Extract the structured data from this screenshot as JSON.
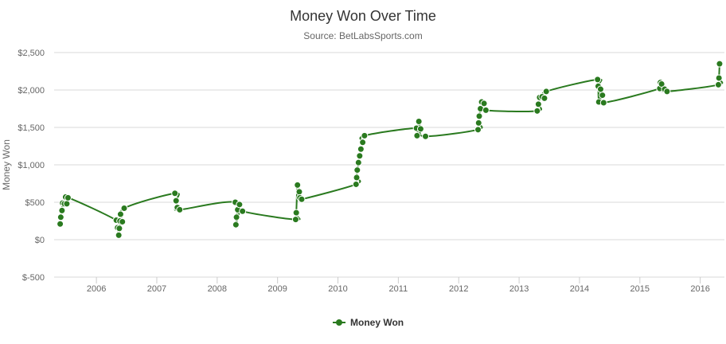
{
  "colors": {
    "series": "#2a7a1f",
    "grid": "#d8d8d8",
    "axis_text": "#666666"
  },
  "chart_data": {
    "type": "line",
    "title": "Money Won Over Time",
    "subtitle": "Source: BetLabsSports.com",
    "xlabel": "",
    "ylabel": "Money Won",
    "ylim": [
      -500,
      2500
    ],
    "yticks": [
      -500,
      0,
      500,
      1000,
      1500,
      2000,
      2500
    ],
    "ytick_labels": [
      "$-500",
      "$0",
      "$500",
      "$1,000",
      "$1,500",
      "$2,000",
      "$2,500"
    ],
    "xlim": [
      2005.3,
      2016.4
    ],
    "xticks": [
      2006,
      2007,
      2008,
      2009,
      2010,
      2011,
      2012,
      2013,
      2014,
      2015,
      2016
    ],
    "xtick_labels": [
      "2006",
      "2007",
      "2008",
      "2009",
      "2010",
      "2011",
      "2012",
      "2013",
      "2014",
      "2015",
      "2016"
    ],
    "grid": true,
    "legend": "bottom-center",
    "series": [
      {
        "name": "Money Won",
        "color": "#2a7a1f",
        "points": [
          [
            2005.4,
            210
          ],
          [
            2005.41,
            300
          ],
          [
            2005.43,
            390
          ],
          [
            2005.44,
            490
          ],
          [
            2005.47,
            480
          ],
          [
            2005.49,
            570
          ],
          [
            2005.51,
            480
          ],
          [
            2005.53,
            560
          ],
          [
            2006.33,
            260
          ],
          [
            2006.35,
            160
          ],
          [
            2006.37,
            60
          ],
          [
            2006.38,
            150
          ],
          [
            2006.39,
            250
          ],
          [
            2006.4,
            340
          ],
          [
            2006.43,
            240
          ],
          [
            2006.46,
            420
          ],
          [
            2007.3,
            620
          ],
          [
            2007.32,
            520
          ],
          [
            2007.34,
            430
          ],
          [
            2007.38,
            400
          ],
          [
            2008.3,
            500
          ],
          [
            2008.31,
            200
          ],
          [
            2008.32,
            300
          ],
          [
            2008.34,
            400
          ],
          [
            2008.37,
            470
          ],
          [
            2008.42,
            380
          ],
          [
            2009.3,
            270
          ],
          [
            2009.31,
            360
          ],
          [
            2009.33,
            730
          ],
          [
            2009.36,
            640
          ],
          [
            2009.37,
            560
          ],
          [
            2009.4,
            540
          ],
          [
            2010.3,
            740
          ],
          [
            2010.31,
            830
          ],
          [
            2010.32,
            930
          ],
          [
            2010.34,
            1030
          ],
          [
            2010.36,
            1120
          ],
          [
            2010.38,
            1210
          ],
          [
            2010.41,
            1300
          ],
          [
            2010.44,
            1390
          ],
          [
            2011.3,
            1490
          ],
          [
            2011.31,
            1390
          ],
          [
            2011.34,
            1580
          ],
          [
            2011.37,
            1480
          ],
          [
            2011.45,
            1380
          ],
          [
            2012.32,
            1470
          ],
          [
            2012.33,
            1560
          ],
          [
            2012.34,
            1650
          ],
          [
            2012.36,
            1750
          ],
          [
            2012.38,
            1840
          ],
          [
            2012.42,
            1820
          ],
          [
            2012.45,
            1730
          ],
          [
            2013.3,
            1720
          ],
          [
            2013.32,
            1810
          ],
          [
            2013.34,
            1900
          ],
          [
            2013.38,
            1910
          ],
          [
            2013.42,
            1890
          ],
          [
            2013.45,
            1980
          ],
          [
            2014.3,
            2140
          ],
          [
            2014.31,
            2050
          ],
          [
            2014.32,
            1840
          ],
          [
            2014.35,
            2010
          ],
          [
            2014.38,
            1930
          ],
          [
            2014.4,
            1830
          ],
          [
            2015.33,
            2020
          ],
          [
            2015.34,
            2100
          ],
          [
            2015.36,
            2080
          ],
          [
            2015.41,
            2010
          ],
          [
            2015.45,
            1980
          ],
          [
            2016.3,
            2070
          ],
          [
            2016.31,
            2160
          ],
          [
            2016.32,
            2350
          ]
        ]
      }
    ]
  }
}
